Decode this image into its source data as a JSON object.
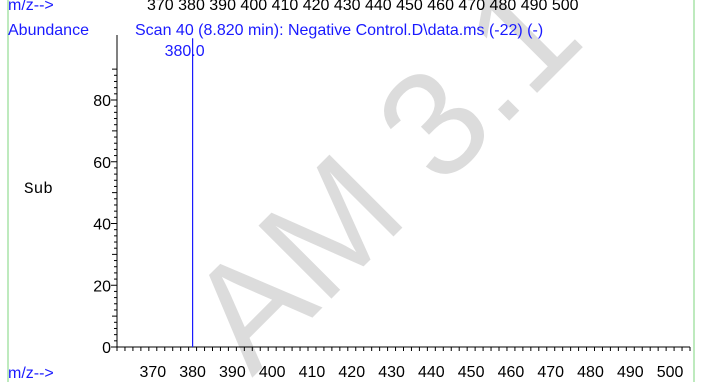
{
  "header": {
    "top_label": "m/z-->",
    "top_ticks": "370 380 390 400 410 420 430 440 450 460 470 480 490 500",
    "ylabel": "Abundance",
    "title": "Scan 40 (8.820 min): Negative Control.D\\data.ms (-22) (-)"
  },
  "side_label": "Sub",
  "watermark": "AM 3.1",
  "colors": {
    "accent": "#1a1aff",
    "axis": "#000000",
    "frame": "#7cd67c",
    "watermark": "#d9d9d9"
  },
  "chart_data": {
    "type": "bar",
    "title": "Scan 40 (8.820 min): Negative Control.D\\data.ms (-22) (-)",
    "xlabel": "m/z-->",
    "ylabel": "Abundance",
    "xlim": [
      361,
      505
    ],
    "ylim": [
      0,
      100
    ],
    "x_ticks": [
      370,
      380,
      390,
      400,
      410,
      420,
      430,
      440,
      450,
      460,
      470,
      480,
      490,
      500
    ],
    "y_ticks": [
      0,
      20,
      40,
      60,
      80
    ],
    "series": [
      {
        "x": [
          380.0
        ],
        "values": [
          100
        ],
        "labels": [
          "380.0"
        ]
      }
    ],
    "grid": false
  }
}
